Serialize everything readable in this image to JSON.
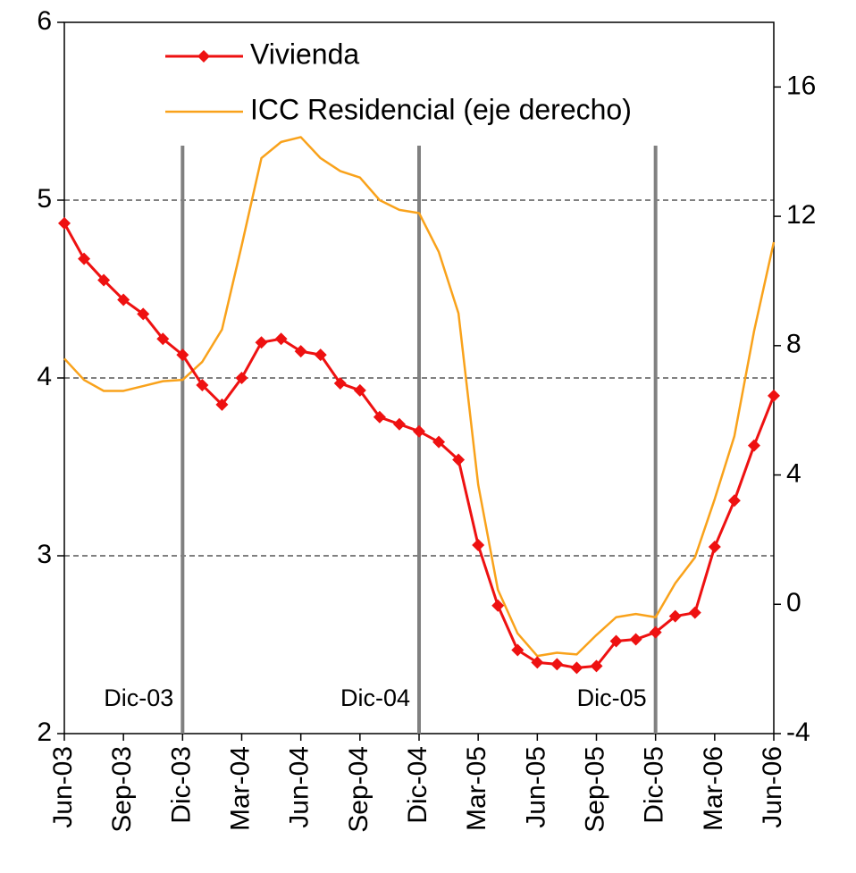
{
  "chart_data": {
    "type": "line",
    "categories": [
      "Jun-03",
      null,
      null,
      "Sep-03",
      null,
      null,
      "Dic-03",
      null,
      null,
      "Mar-04",
      null,
      null,
      "Jun-04",
      null,
      null,
      "Sep-04",
      null,
      null,
      "Dic-04",
      null,
      null,
      "Mar-05",
      null,
      null,
      "Jun-05",
      null,
      null,
      "Sep-05",
      null,
      null,
      "Dic-05",
      null,
      null,
      "Mar-06",
      null,
      null,
      "Jun-06"
    ],
    "series": [
      {
        "name": "Vivienda",
        "color": "#ee1111",
        "marker": "diamond",
        "values": [
          4.87,
          4.67,
          4.55,
          4.44,
          4.36,
          4.22,
          4.13,
          3.96,
          3.85,
          4.0,
          4.2,
          4.22,
          4.15,
          4.13,
          3.97,
          3.93,
          3.78,
          3.74,
          3.7,
          3.64,
          3.54,
          3.06,
          2.72,
          2.47,
          2.4,
          2.39,
          2.37,
          2.38,
          2.52,
          2.53,
          2.57,
          2.66,
          2.68,
          3.05,
          3.31,
          3.62,
          3.9
        ]
      },
      {
        "name": "ICC Residencial (eje derecho)",
        "color": "#f9a21b",
        "axis": "y2",
        "values": [
          7.6,
          6.94,
          6.6,
          6.6,
          6.75,
          6.9,
          6.94,
          7.5,
          8.5,
          11.1,
          13.8,
          14.3,
          14.45,
          13.8,
          13.4,
          13.2,
          12.5,
          12.2,
          12.1,
          10.9,
          9.0,
          3.7,
          0.45,
          -0.9,
          -1.6,
          -1.5,
          -1.55,
          -0.95,
          -0.4,
          -0.3,
          -0.4,
          0.65,
          1.45,
          3.25,
          5.2,
          8.45,
          11.2
        ]
      }
    ],
    "ylim": [
      2,
      6
    ],
    "yticks": [
      2,
      3,
      4,
      5,
      6
    ],
    "y2lim": [
      -4,
      18
    ],
    "y2ticks": [
      -4,
      0,
      4,
      8,
      12,
      16
    ],
    "grid": true,
    "legend": "upper-left",
    "markers": [
      {
        "label": "Dic-03",
        "category": "Dic-03"
      },
      {
        "label": "Dic-04",
        "category": "Dic-04"
      },
      {
        "label": "Dic-05",
        "category": "Dic-05"
      }
    ]
  }
}
